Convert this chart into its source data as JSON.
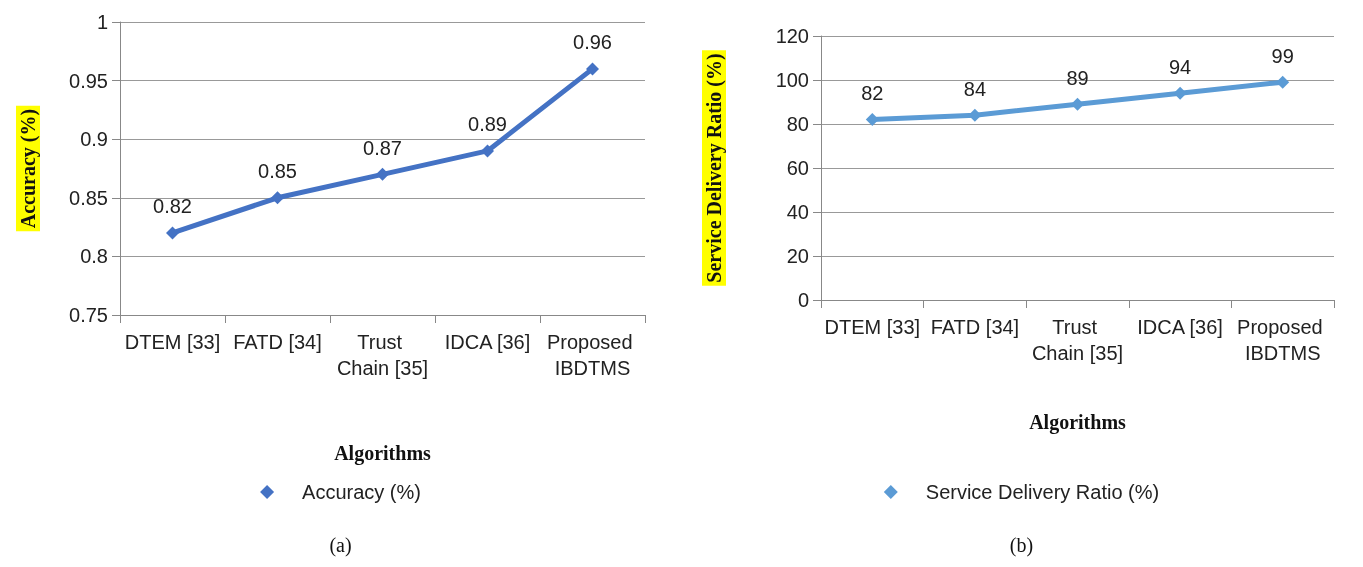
{
  "chart_data": [
    {
      "type": "line",
      "xlabel": "Algorithms",
      "ylabel": "Accuracy (%)",
      "categories": [
        "DTEM [33]",
        "FATD [34]",
        "Trust Chain [35]",
        "IDCA [36]",
        "Proposed IBDTMS"
      ],
      "series": [
        {
          "name": "Accuracy (%)",
          "color": "#4472c4",
          "values": [
            0.82,
            0.85,
            0.87,
            0.89,
            0.96
          ]
        }
      ],
      "ylim": [
        0.75,
        1
      ],
      "yticks": [
        0.75,
        0.8,
        0.85,
        0.9,
        0.95,
        1
      ],
      "grid": "y",
      "legend": "bottom",
      "marker": "diamond",
      "line_style": "solid",
      "data_labels": true,
      "annotations": [
        "(a)"
      ]
    },
    {
      "type": "line",
      "xlabel": "Algorithms",
      "ylabel": "Service Delivery Ratio (%)",
      "categories": [
        "DTEM [33]",
        "FATD [34]",
        "Trust Chain [35]",
        "IDCA [36]",
        "Proposed IBDTMS"
      ],
      "series": [
        {
          "name": "Service Delivery Ratio (%)",
          "color": "#5b9bd5",
          "values": [
            82,
            84,
            89,
            94,
            99
          ]
        }
      ],
      "ylim": [
        0,
        120
      ],
      "yticks": [
        0,
        20,
        40,
        60,
        80,
        100,
        120
      ],
      "grid": "y",
      "legend": "bottom",
      "marker": "diamond",
      "line_style": "solid",
      "data_labels": true,
      "annotations": [
        "(b)"
      ]
    }
  ]
}
